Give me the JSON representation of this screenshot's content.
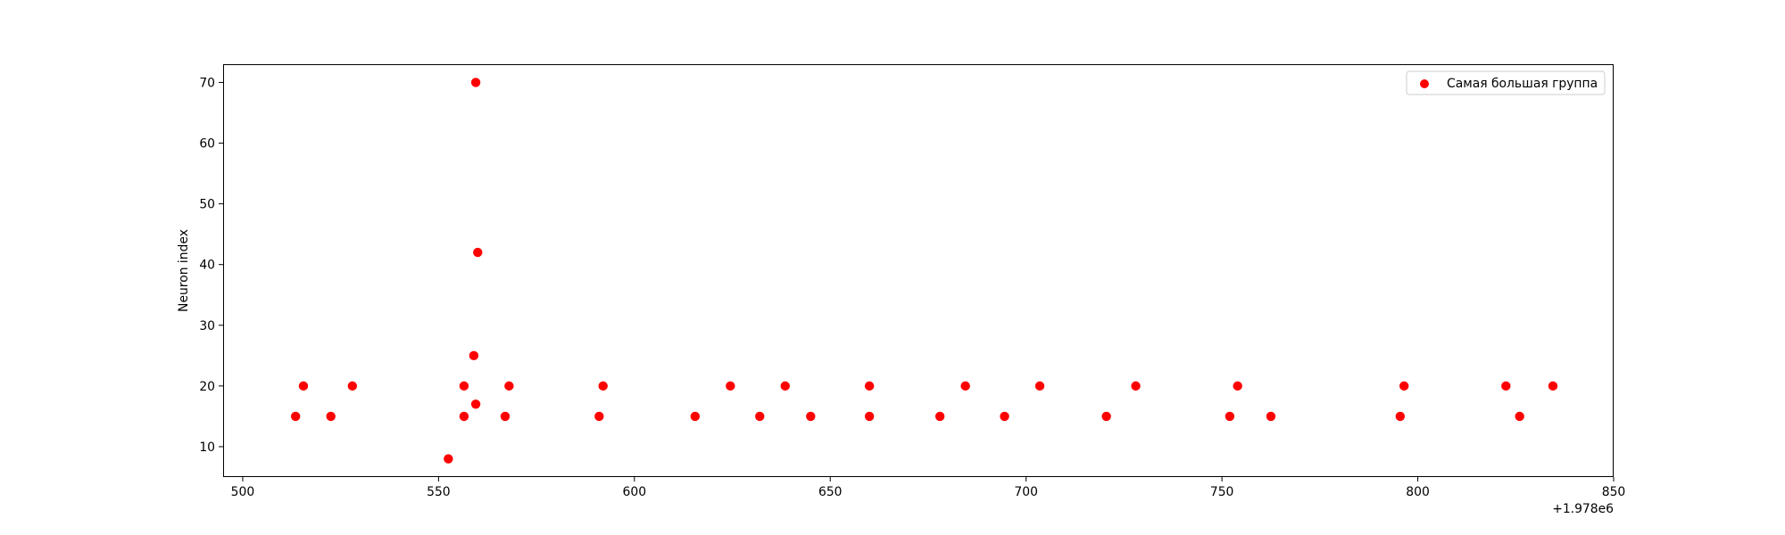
{
  "chart_data": {
    "type": "scatter",
    "title": "",
    "xlabel": "",
    "ylabel": "Neuron index",
    "x_offset_label": "+1.978e6",
    "x_offset": 1978000,
    "xlim": [
      495,
      850
    ],
    "ylim": [
      5,
      73
    ],
    "x_ticks": [
      500,
      550,
      600,
      650,
      700,
      750,
      800,
      850
    ],
    "y_ticks": [
      10,
      20,
      30,
      40,
      50,
      60,
      70
    ],
    "grid": false,
    "legend_position": "top-right",
    "series": [
      {
        "name": "Самая большая группа",
        "color": "#ff0000",
        "points": [
          {
            "x": 513.5,
            "y": 15
          },
          {
            "x": 515.5,
            "y": 20
          },
          {
            "x": 522.5,
            "y": 15
          },
          {
            "x": 528.0,
            "y": 20
          },
          {
            "x": 552.5,
            "y": 8
          },
          {
            "x": 556.5,
            "y": 20
          },
          {
            "x": 556.5,
            "y": 15
          },
          {
            "x": 559.0,
            "y": 25
          },
          {
            "x": 559.5,
            "y": 70
          },
          {
            "x": 559.5,
            "y": 17
          },
          {
            "x": 560.0,
            "y": 42
          },
          {
            "x": 567.0,
            "y": 15
          },
          {
            "x": 568.0,
            "y": 20
          },
          {
            "x": 591.0,
            "y": 15
          },
          {
            "x": 592.0,
            "y": 20
          },
          {
            "x": 615.5,
            "y": 15
          },
          {
            "x": 624.5,
            "y": 20
          },
          {
            "x": 632.0,
            "y": 15
          },
          {
            "x": 638.5,
            "y": 20
          },
          {
            "x": 645.0,
            "y": 15
          },
          {
            "x": 660.0,
            "y": 20
          },
          {
            "x": 660.0,
            "y": 15
          },
          {
            "x": 678.0,
            "y": 15
          },
          {
            "x": 684.5,
            "y": 20
          },
          {
            "x": 694.5,
            "y": 15
          },
          {
            "x": 703.5,
            "y": 20
          },
          {
            "x": 720.5,
            "y": 15
          },
          {
            "x": 728.0,
            "y": 20
          },
          {
            "x": 752.0,
            "y": 15
          },
          {
            "x": 754.0,
            "y": 20
          },
          {
            "x": 762.5,
            "y": 15
          },
          {
            "x": 795.5,
            "y": 15
          },
          {
            "x": 796.5,
            "y": 20
          },
          {
            "x": 822.5,
            "y": 20
          },
          {
            "x": 826.0,
            "y": 15
          },
          {
            "x": 834.5,
            "y": 20
          }
        ]
      }
    ]
  }
}
